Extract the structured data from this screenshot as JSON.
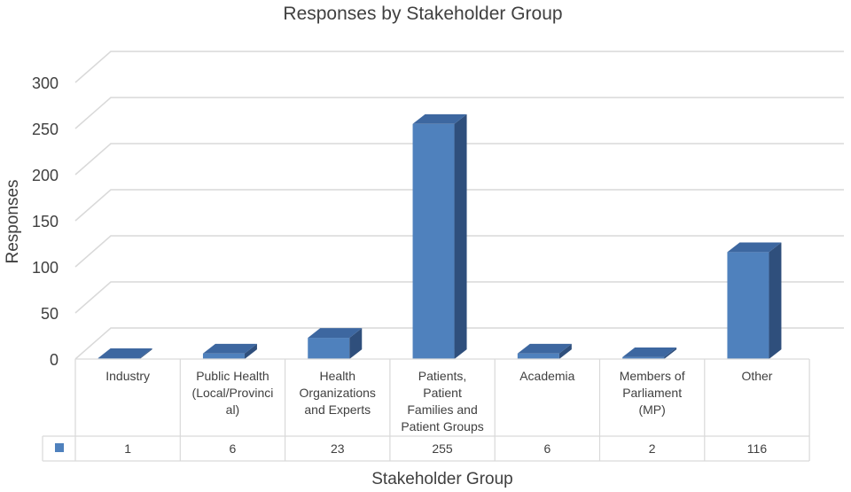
{
  "chart_data": {
    "type": "bar",
    "title": "Responses by Stakeholder Group",
    "xlabel": "Stakeholder Group",
    "ylabel": "Responses",
    "ylim": [
      0,
      300
    ],
    "yticks": [
      "0",
      "50",
      "100",
      "150",
      "200",
      "250",
      "300"
    ],
    "categories": [
      [
        "Industry"
      ],
      [
        "Public Health",
        "(Local/Provinci",
        "al)"
      ],
      [
        "Health",
        "Organizations",
        "and Experts"
      ],
      [
        "Patients,",
        "Patient",
        "Families and",
        "Patient Groups"
      ],
      [
        "Academia"
      ],
      [
        "Members of",
        "Parliament",
        "(MP)"
      ],
      [
        "Other"
      ]
    ],
    "values": [
      1,
      6,
      23,
      255,
      6,
      2,
      116
    ],
    "value_labels": [
      "1",
      "6",
      "23",
      "255",
      "6",
      "2",
      "116"
    ],
    "grid": true,
    "data_table": true,
    "bar_color": "#4f81bd",
    "bar_side_color": "#2f4f7c",
    "bar_top_color": "#3d67a0"
  }
}
